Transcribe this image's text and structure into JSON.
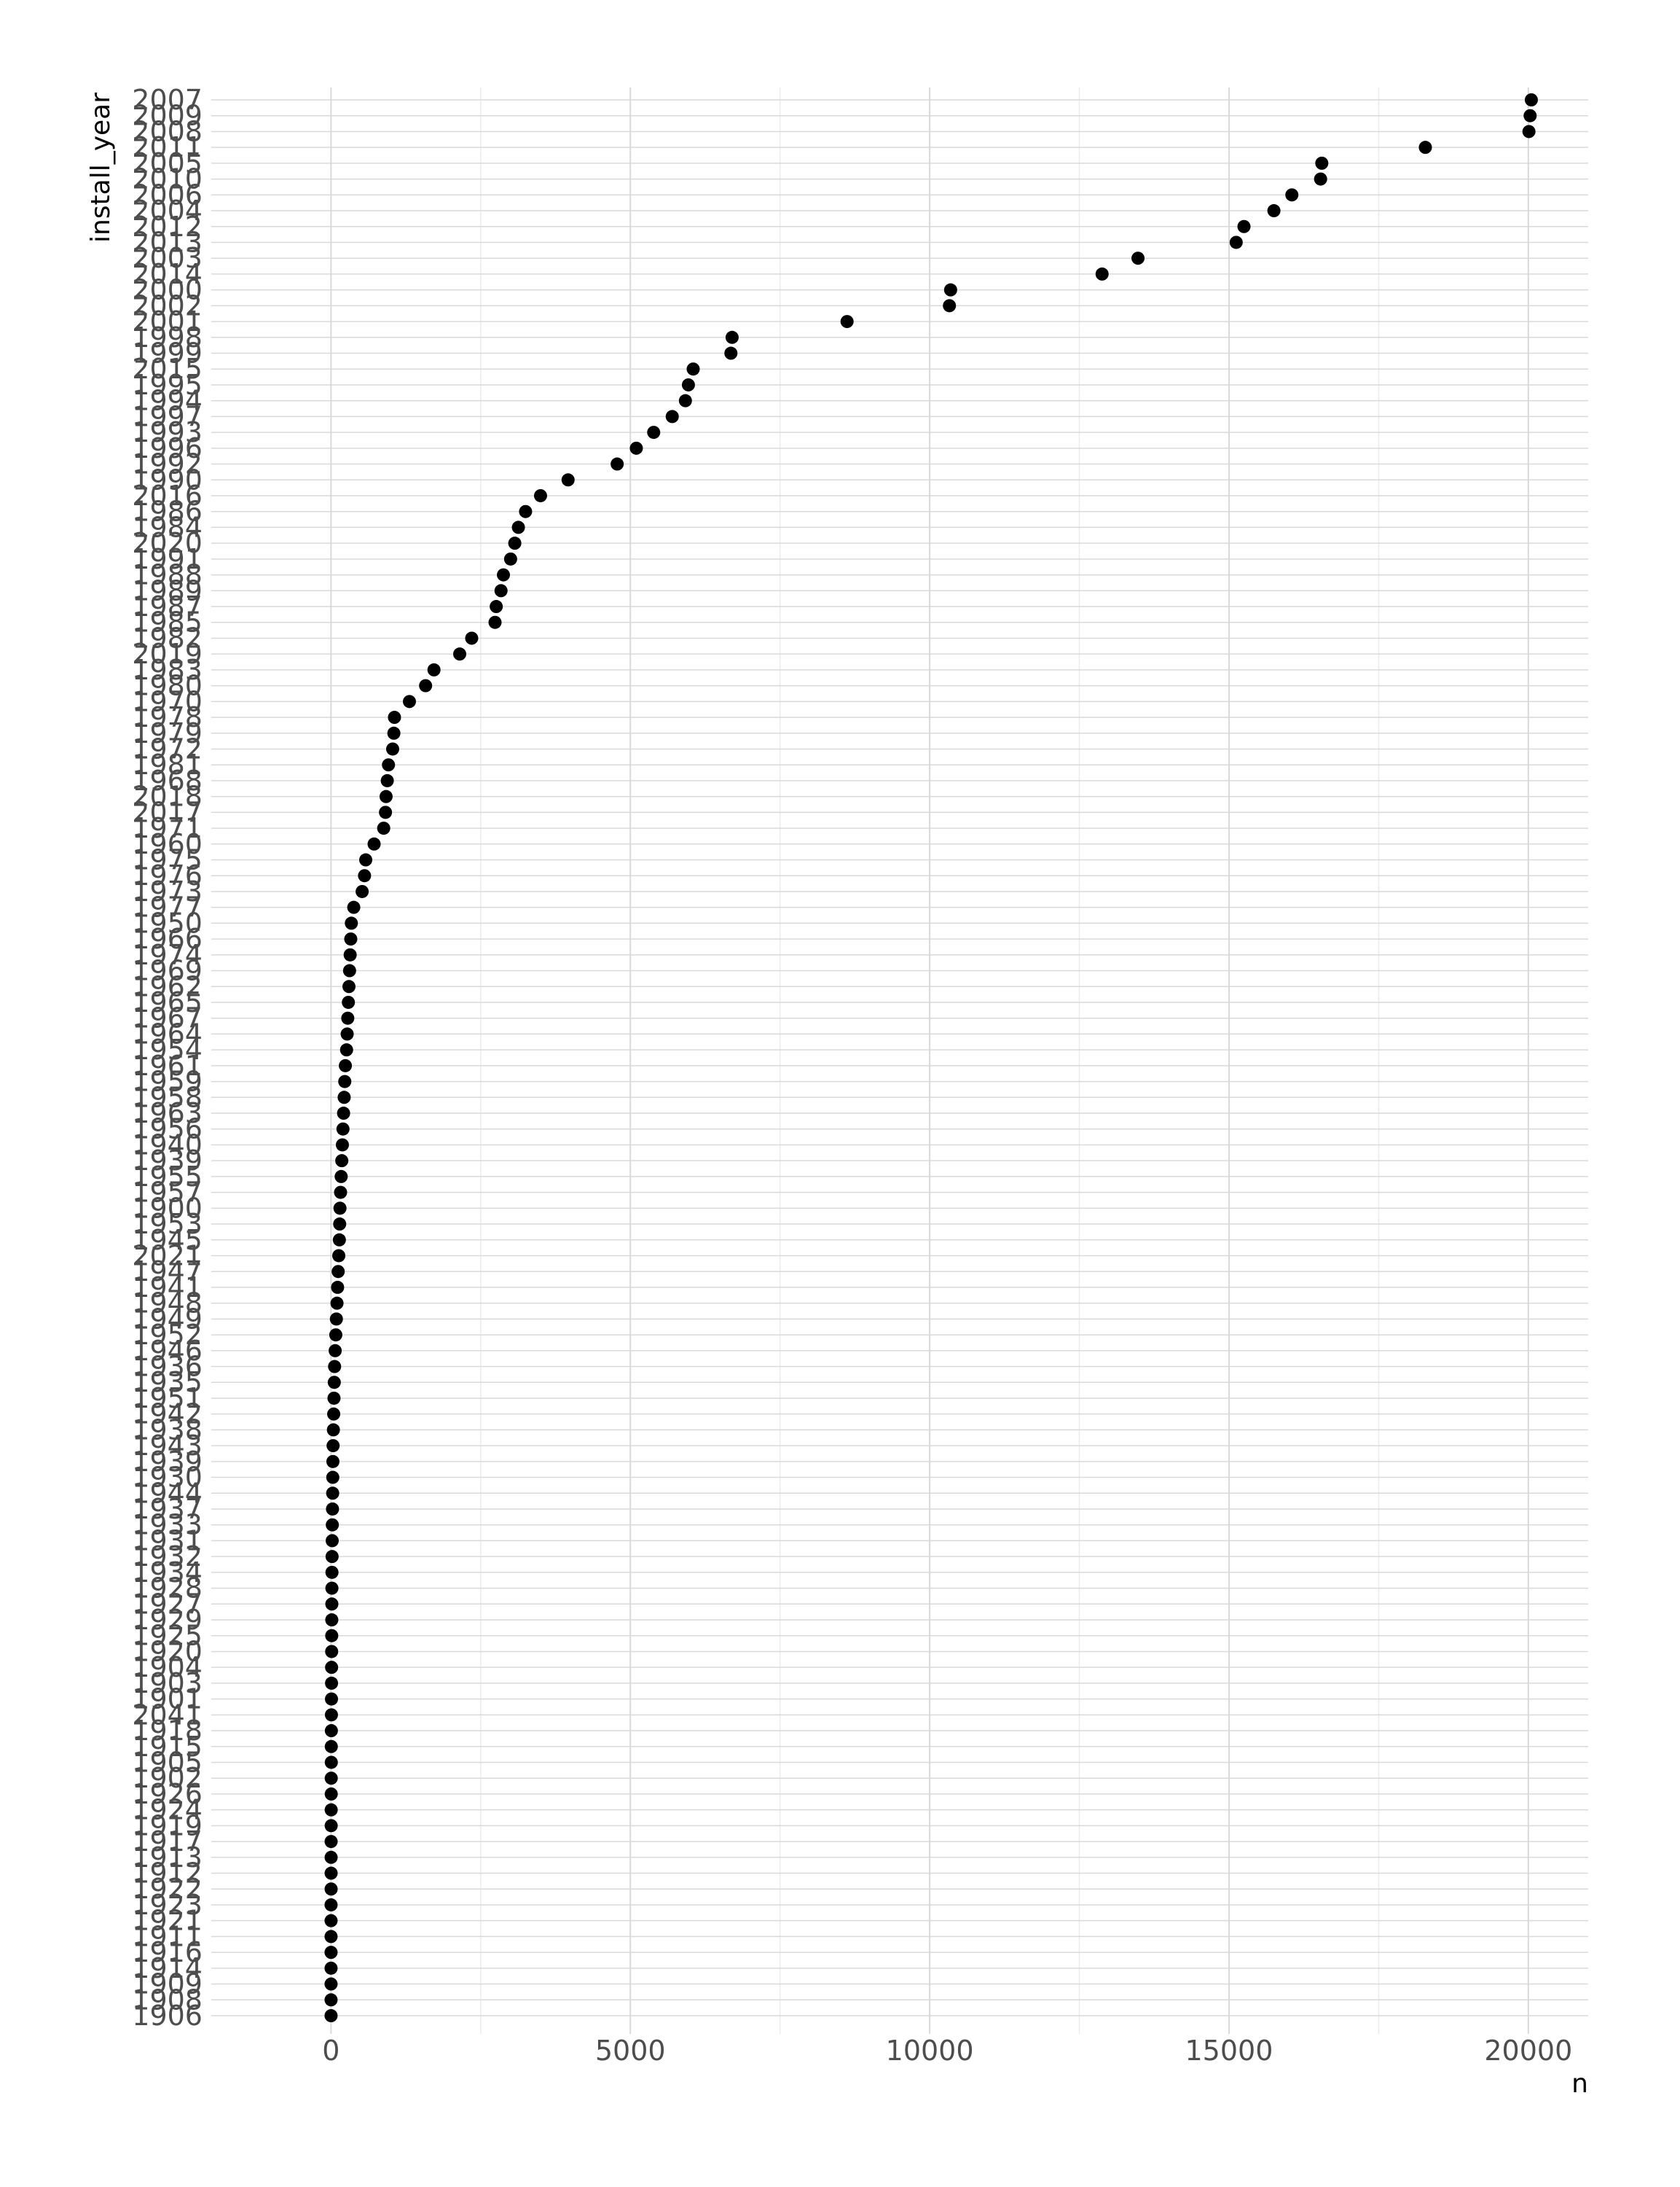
{
  "chart_data": {
    "type": "scatter",
    "xlabel": "n",
    "ylabel": "install_year",
    "xlim": [
      -2000,
      21000
    ],
    "xticks": [
      "0",
      "5000",
      "10000",
      "15000",
      "20000"
    ],
    "xtick_values": [
      0,
      5000,
      10000,
      15000,
      20000
    ],
    "grid": true,
    "legend": "none",
    "point_color": "#000000",
    "grid_color": "#d9d9d9",
    "categories": [
      "2007",
      "2009",
      "2008",
      "2011",
      "2005",
      "2010",
      "2006",
      "2004",
      "2012",
      "2013",
      "2003",
      "2014",
      "2000",
      "2002",
      "2001",
      "1998",
      "1999",
      "2015",
      "1995",
      "1994",
      "1997",
      "1993",
      "1996",
      "1992",
      "1990",
      "2016",
      "1986",
      "1984",
      "2020",
      "1991",
      "1988",
      "1989",
      "1987",
      "1985",
      "1982",
      "2019",
      "1983",
      "1980",
      "1970",
      "1978",
      "1979",
      "1972",
      "1981",
      "1968",
      "2018",
      "2017",
      "1971",
      "1960",
      "1975",
      "1976",
      "1973",
      "1977",
      "1950",
      "1966",
      "1974",
      "1969",
      "1962",
      "1965",
      "1967",
      "1964",
      "1954",
      "1961",
      "1959",
      "1958",
      "1963",
      "1956",
      "1940",
      "1939",
      "1955",
      "1957",
      "1900",
      "1953",
      "1945",
      "2021",
      "1947",
      "1941",
      "1948",
      "1949",
      "1952",
      "1946",
      "1936",
      "1935",
      "1951",
      "1942",
      "1938",
      "1943",
      "1939",
      "1930",
      "1944",
      "1937",
      "1933",
      "1931",
      "1932",
      "1934",
      "1928",
      "1927",
      "1929",
      "1925",
      "1920",
      "1904",
      "1903",
      "1901",
      "2041",
      "1918",
      "1915",
      "1905",
      "1902",
      "1926",
      "1924",
      "1919",
      "1917",
      "1913",
      "1912",
      "1922",
      "1923",
      "1921",
      "1911",
      "1916",
      "1914",
      "1909",
      "1908",
      "1906"
    ],
    "values": [
      20050,
      20030,
      20010,
      18280,
      16550,
      16530,
      16050,
      15750,
      15250,
      15120,
      13480,
      12880,
      10350,
      10330,
      8620,
      6700,
      6680,
      6050,
      5970,
      5920,
      5700,
      5390,
      5100,
      4780,
      3960,
      3500,
      3250,
      3130,
      3070,
      3000,
      2880,
      2840,
      2760,
      2740,
      2350,
      2150,
      1720,
      1580,
      1310,
      1060,
      1050,
      1030,
      960,
      940,
      920,
      910,
      880,
      720,
      580,
      560,
      520,
      380,
      340,
      330,
      320,
      310,
      300,
      290,
      280,
      270,
      260,
      240,
      230,
      220,
      210,
      200,
      190,
      180,
      170,
      160,
      150,
      145,
      140,
      130,
      120,
      110,
      100,
      90,
      80,
      70,
      60,
      55,
      50,
      45,
      40,
      35,
      32,
      30,
      28,
      25,
      22,
      20,
      18,
      16,
      15,
      14,
      13,
      12,
      11,
      10,
      9,
      8,
      7,
      6,
      5,
      5,
      4,
      4,
      3,
      3,
      2,
      2,
      2,
      2,
      1,
      1,
      1,
      1,
      1,
      1,
      1,
      1
    ]
  }
}
